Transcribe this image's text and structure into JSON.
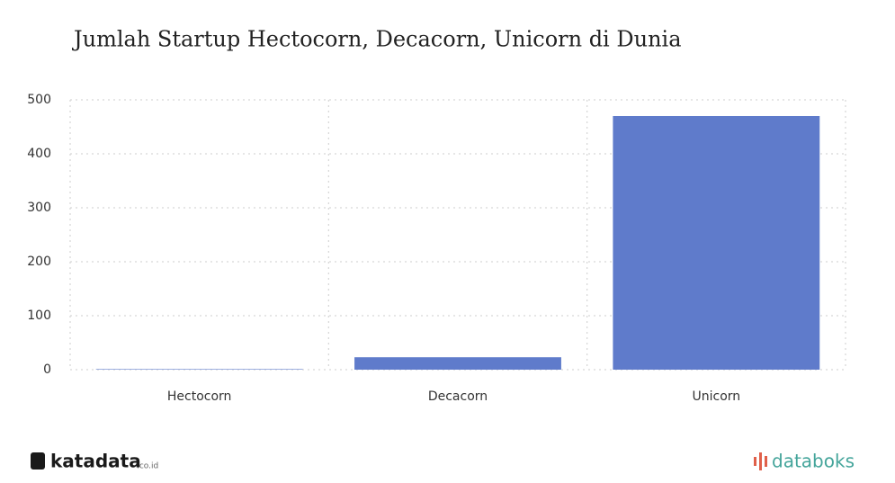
{
  "chart_data": {
    "type": "bar",
    "title": "Jumlah Startup Hectocorn, Decacorn, Unicorn di Dunia",
    "categories": [
      "Hectocorn",
      "Decacorn",
      "Unicorn"
    ],
    "values": [
      1,
      23,
      470
    ],
    "color": "#5f7bcb",
    "ylim": [
      0,
      500
    ],
    "yticks": [
      0,
      100,
      200,
      300,
      400,
      500
    ],
    "grid": true,
    "brand_left": "katadata",
    "brand_left_suffix": ".co.id",
    "brand_right": "databoks"
  }
}
